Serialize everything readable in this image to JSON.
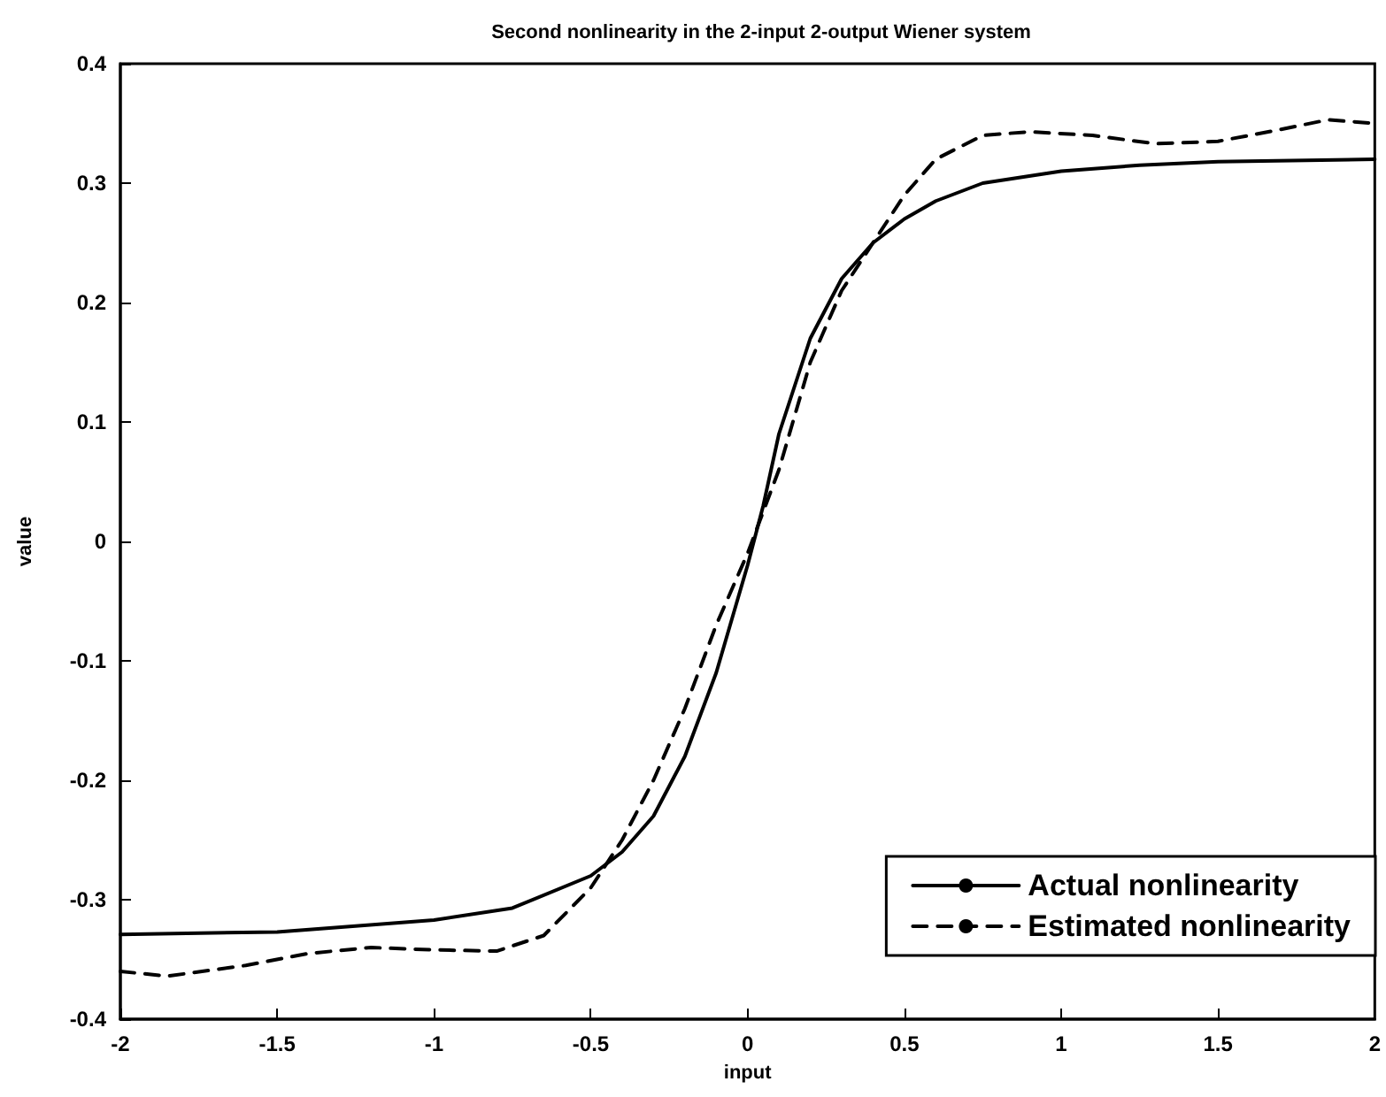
{
  "chart_data": {
    "type": "line",
    "title": "Second nonlinearity in the 2-input 2-output Wiener system",
    "xlabel": "input",
    "ylabel": "value",
    "xlim": [
      -2,
      2
    ],
    "xticks": [
      -2,
      -1.5,
      -1,
      -0.5,
      0,
      0.5,
      1,
      1.5,
      2
    ],
    "ylim": [
      -0.4,
      0.4
    ],
    "yticks": [
      -0.4,
      -0.3,
      -0.2,
      -0.1,
      0,
      0.1,
      0.2,
      0.3,
      0.4
    ],
    "grid": false,
    "legend": "bottom right",
    "marker": "none",
    "series": [
      {
        "name": "Actual nonlinearity",
        "color": "#000000",
        "line_style": "solid",
        "x": [
          -2,
          -1.5,
          -1,
          -0.75,
          -0.5,
          -0.4,
          -0.3,
          -0.2,
          -0.1,
          0,
          0.05,
          0.1,
          0.2,
          0.3,
          0.4,
          0.5,
          0.6,
          0.75,
          1,
          1.25,
          1.5,
          2
        ],
        "values": [
          -0.329,
          -0.327,
          -0.317,
          -0.307,
          -0.28,
          -0.26,
          -0.23,
          -0.18,
          -0.11,
          -0.02,
          0.03,
          0.09,
          0.17,
          0.22,
          0.25,
          0.27,
          0.285,
          0.3,
          0.31,
          0.315,
          0.318,
          0.32
        ]
      },
      {
        "name": "Estimated nonlinearity",
        "color": "#000000",
        "line_style": "dashed",
        "x": [
          -2,
          -1.85,
          -1.6,
          -1.4,
          -1.2,
          -1,
          -0.8,
          -0.65,
          -0.5,
          -0.4,
          -0.3,
          -0.2,
          -0.1,
          0,
          0.1,
          0.2,
          0.3,
          0.4,
          0.5,
          0.6,
          0.75,
          0.9,
          1.1,
          1.3,
          1.5,
          1.7,
          1.85,
          2
        ],
        "values": [
          -0.36,
          -0.364,
          -0.355,
          -0.345,
          -0.34,
          -0.342,
          -0.343,
          -0.33,
          -0.29,
          -0.25,
          -0.2,
          -0.14,
          -0.07,
          -0.01,
          0.06,
          0.15,
          0.21,
          0.25,
          0.29,
          0.32,
          0.34,
          0.343,
          0.34,
          0.333,
          0.335,
          0.345,
          0.353,
          0.35
        ]
      }
    ]
  }
}
